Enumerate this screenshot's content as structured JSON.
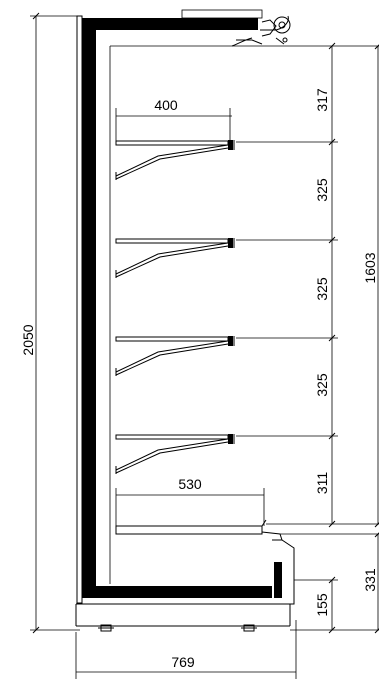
{
  "drawing": {
    "type": "refrigerated display cabinet side section",
    "shelf_count": 5,
    "dimensions": {
      "total_height": "2050",
      "display_height": "1603",
      "top_gap": "317",
      "shelf_spacing_1": "325",
      "shelf_spacing_2": "325",
      "shelf_spacing_3": "325",
      "bottom_gap": "311",
      "base_height": "331",
      "foot_height": "155",
      "shelf_depth": "400",
      "bottom_shelf_depth": "530",
      "total_depth": "769"
    }
  }
}
